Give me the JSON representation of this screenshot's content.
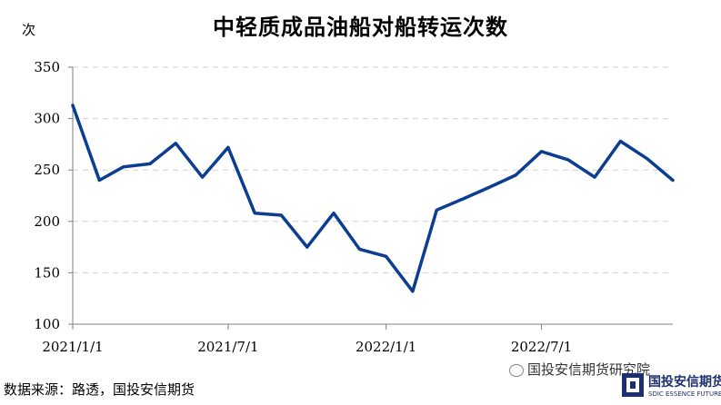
{
  "chart_data": {
    "type": "line",
    "title": "中轻质成品油船对船转运次数",
    "ylabel": "次",
    "xlabel": "",
    "ylim": [
      100,
      350
    ],
    "yticks": [
      100,
      150,
      200,
      250,
      300,
      350
    ],
    "x_tick_labels": [
      "2021/1/1",
      "2021/7/1",
      "2022/1/1",
      "2022/7/1"
    ],
    "grid": true,
    "series": [
      {
        "color": "#0b3d91",
        "points": [
          {
            "x": "2021-01-01",
            "y": 313
          },
          {
            "x": "2021-02-01",
            "y": 240
          },
          {
            "x": "2021-03-01",
            "y": 253
          },
          {
            "x": "2021-04-01",
            "y": 256
          },
          {
            "x": "2021-05-01",
            "y": 276
          },
          {
            "x": "2021-06-01",
            "y": 243
          },
          {
            "x": "2021-07-01",
            "y": 272
          },
          {
            "x": "2021-08-01",
            "y": 208
          },
          {
            "x": "2021-09-01",
            "y": 206
          },
          {
            "x": "2021-10-01",
            "y": 175
          },
          {
            "x": "2021-11-01",
            "y": 208
          },
          {
            "x": "2021-12-01",
            "y": 173
          },
          {
            "x": "2022-01-01",
            "y": 166
          },
          {
            "x": "2022-02-01",
            "y": 132
          },
          {
            "x": "2022-03-01",
            "y": 211
          },
          {
            "x": "2022-04-01",
            "y": 222
          },
          {
            "x": "2022-05-01",
            "y": 233
          },
          {
            "x": "2022-06-01",
            "y": 245
          },
          {
            "x": "2022-07-01",
            "y": 268
          },
          {
            "x": "2022-08-01",
            "y": 260
          },
          {
            "x": "2022-09-01",
            "y": 243
          },
          {
            "x": "2022-10-01",
            "y": 278
          },
          {
            "x": "2022-11-01",
            "y": 261
          },
          {
            "x": "2022-12-01",
            "y": 240
          }
        ]
      }
    ]
  },
  "source_text": "数据来源：路透，国投安信期货",
  "watermark_text": "国投安信期货研究院",
  "logo": {
    "name": "国投安信期货",
    "subtitle": "SDIC ESSENCE FUTURES"
  },
  "colors": {
    "line": "#0b3d91",
    "grid": "#d0d0d0",
    "axis": "#808080",
    "logo": "#1c2f6e"
  }
}
